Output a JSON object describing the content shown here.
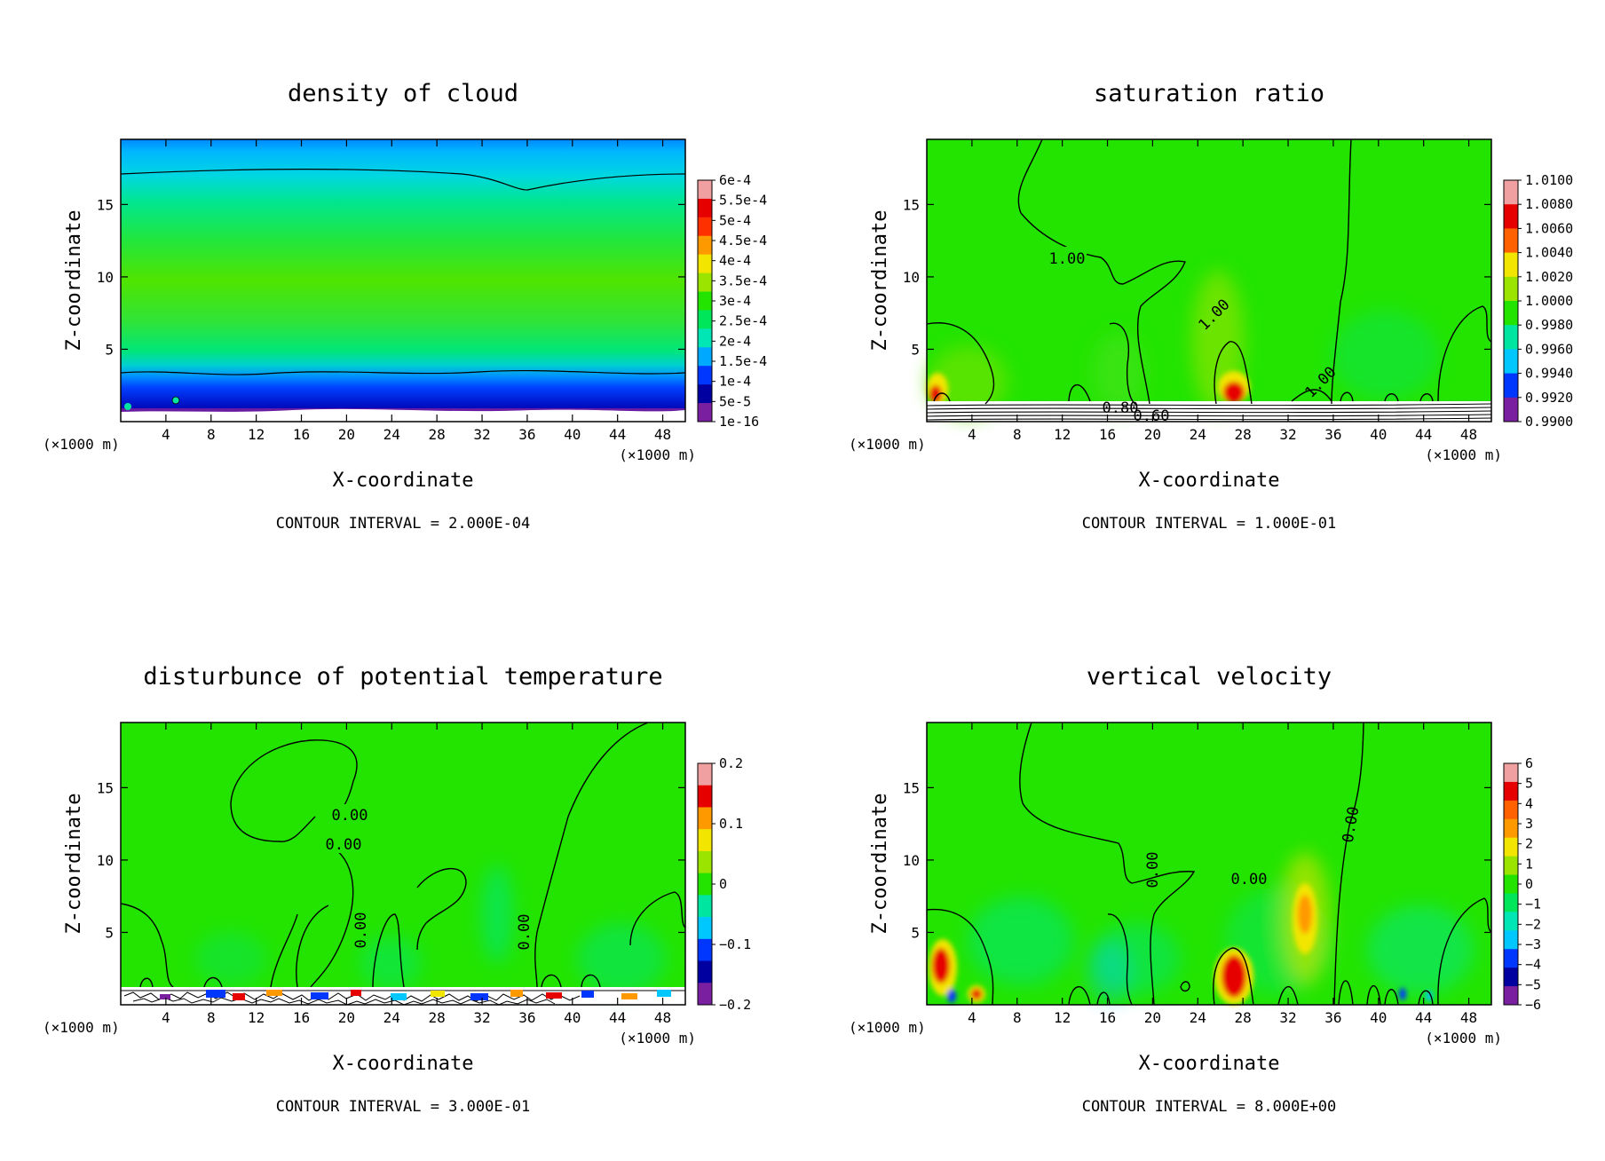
{
  "chart_data": [
    {
      "type": "heatmap",
      "title": "density of cloud",
      "xlabel": "X-coordinate",
      "ylabel": "Z-coordinate",
      "x_unit_left": "(×1000 m)",
      "x_unit_right": "(×1000 m)",
      "xlim": [
        0,
        50
      ],
      "ylim": [
        0,
        19.5
      ],
      "xticks": [
        4,
        8,
        12,
        16,
        20,
        24,
        28,
        32,
        36,
        40,
        44,
        48
      ],
      "yticks": [
        5,
        10,
        15
      ],
      "colorbar_labels": [
        "6e-4",
        "5.5e-4",
        "5e-4",
        "4.5e-4",
        "4e-4",
        "3.5e-4",
        "3e-4",
        "2.5e-4",
        "2e-4",
        "1.5e-4",
        "1e-4",
        "5e-5",
        "1e-16"
      ],
      "contour_labels": [],
      "contour_interval": "CONTOUR INTERVAL = 2.000E-04"
    },
    {
      "type": "heatmap",
      "title": "saturation ratio",
      "xlabel": "X-coordinate",
      "ylabel": "Z-coordinate",
      "x_unit_left": "(×1000 m)",
      "x_unit_right": "(×1000 m)",
      "xlim": [
        0,
        50
      ],
      "ylim": [
        0,
        19.5
      ],
      "xticks": [
        4,
        8,
        12,
        16,
        20,
        24,
        28,
        32,
        36,
        40,
        44,
        48
      ],
      "yticks": [
        5,
        10,
        15
      ],
      "colorbar_labels": [
        "1.0100",
        "1.0080",
        "1.0060",
        "1.0040",
        "1.0020",
        "1.0000",
        "0.9980",
        "0.9960",
        "0.9940",
        "0.9920",
        "0.9900"
      ],
      "contour_labels": [
        "1.00",
        "1.00",
        "1.00",
        "0.80",
        "0.60"
      ],
      "contour_interval": "CONTOUR INTERVAL = 1.000E-01"
    },
    {
      "type": "heatmap",
      "title": "disturbunce of potential temperature",
      "xlabel": "X-coordinate",
      "ylabel": "Z-coordinate",
      "x_unit_left": "(×1000 m)",
      "x_unit_right": "(×1000 m)",
      "xlim": [
        0,
        50
      ],
      "ylim": [
        0,
        19.5
      ],
      "xticks": [
        4,
        8,
        12,
        16,
        20,
        24,
        28,
        32,
        36,
        40,
        44,
        48
      ],
      "yticks": [
        5,
        10,
        15
      ],
      "colorbar_labels": [
        "0.2",
        "0.1",
        "0",
        "−0.1",
        "−0.2"
      ],
      "contour_labels": [
        "0.00",
        "0.00",
        "0.00",
        "0.00"
      ],
      "contour_interval": "CONTOUR INTERVAL = 3.000E-01"
    },
    {
      "type": "heatmap",
      "title": "vertical velocity",
      "xlabel": "X-coordinate",
      "ylabel": "Z-coordinate",
      "x_unit_left": "(×1000 m)",
      "x_unit_right": "(×1000 m)",
      "xlim": [
        0,
        50
      ],
      "ylim": [
        0,
        19.5
      ],
      "xticks": [
        4,
        8,
        12,
        16,
        20,
        24,
        28,
        32,
        36,
        40,
        44,
        48
      ],
      "yticks": [
        5,
        10,
        15
      ],
      "colorbar_labels": [
        "6",
        "5",
        "4",
        "3",
        "2",
        "1",
        "0",
        "−1",
        "−2",
        "−3",
        "−4",
        "−5",
        "−6"
      ],
      "contour_labels": [
        "0.00",
        "0.00",
        "0.00"
      ],
      "contour_interval": "CONTOUR INTERVAL = 8.000E+00"
    }
  ],
  "colors": {
    "field_green": "#22e400",
    "lime": "#7ae400",
    "teal": "#00e67a",
    "cyan": "#00c8ff",
    "blue": "#0037ff",
    "navy": "#0000a0",
    "purple": "#7a1fa0",
    "red": "#e60000",
    "orange": "#ff9900",
    "yellow": "#f2e600",
    "pink": "#f0a0a0"
  }
}
